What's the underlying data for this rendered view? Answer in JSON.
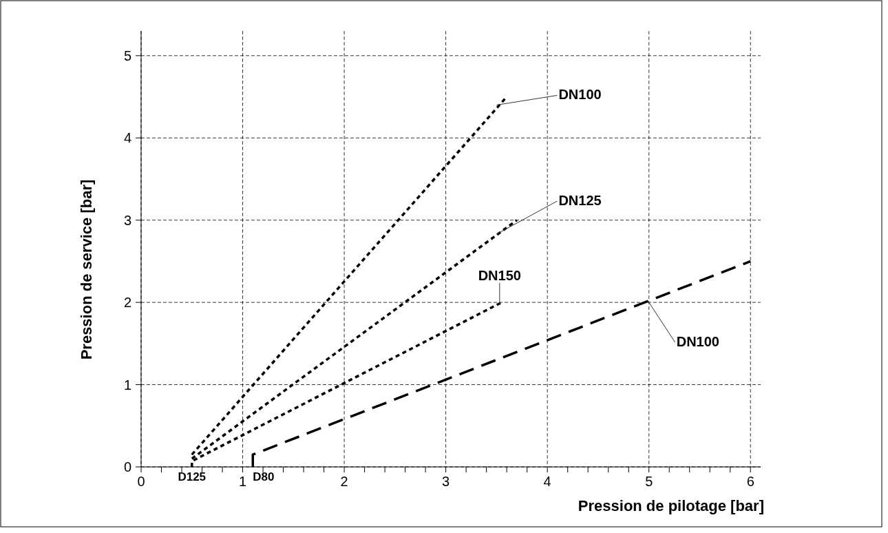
{
  "chart_data": {
    "type": "line",
    "xlabel": "Pression de pilotage [bar]",
    "ylabel": "Pression de service [bar]",
    "xlim": [
      0,
      6.1
    ],
    "ylim": [
      0,
      5.3
    ],
    "xticks": [
      0,
      {
        "value": 0.2,
        "label": null
      },
      {
        "value": 0.4,
        "label": null
      },
      {
        "value": 0.6,
        "label": null
      },
      {
        "value": 0.8,
        "label": null
      },
      1,
      {
        "value": 1.2,
        "label": null
      },
      {
        "value": 1.4,
        "label": null
      },
      {
        "value": 1.6,
        "label": null
      },
      {
        "value": 1.8,
        "label": null
      },
      2,
      {
        "value": 2.2,
        "label": null
      },
      {
        "value": 2.4,
        "label": null
      },
      {
        "value": 2.6,
        "label": null
      },
      {
        "value": 2.8,
        "label": null
      },
      3,
      {
        "value": 3.2,
        "label": null
      },
      {
        "value": 3.4,
        "label": null
      },
      {
        "value": 3.6,
        "label": null
      },
      {
        "value": 3.8,
        "label": null
      },
      4,
      {
        "value": 4.2,
        "label": null
      },
      {
        "value": 4.4,
        "label": null
      },
      {
        "value": 4.6,
        "label": null
      },
      {
        "value": 4.8,
        "label": null
      },
      5,
      {
        "value": 5.2,
        "label": null
      },
      {
        "value": 5.4,
        "label": null
      },
      {
        "value": 5.6,
        "label": null
      },
      {
        "value": 5.8,
        "label": null
      },
      6
    ],
    "yticks": [
      0,
      1,
      2,
      3,
      4,
      5
    ],
    "grid": true,
    "marker": "none",
    "series": [
      {
        "color": "#000000",
        "line_style": "dotted",
        "x": [
          0.5,
          3.6
        ],
        "values": [
          0.15,
          4.5
        ]
      },
      {
        "color": "#000000",
        "line_style": "dotted",
        "x": [
          0.5,
          3.7
        ],
        "values": [
          0.1,
          3.0
        ]
      },
      {
        "color": "#000000",
        "line_style": "dotted",
        "x": [
          0.5,
          0.5,
          3.55
        ],
        "values": [
          0,
          0.07,
          2.0
        ]
      },
      {
        "color": "#000000",
        "line_style": "dashed",
        "x": [
          1.1,
          1.1,
          6
        ],
        "values": [
          0,
          0.15,
          2.5
        ]
      }
    ],
    "annotations": [
      {
        "text": "DN100",
        "x": 3.5,
        "y": 4.4
      },
      {
        "text": "DN125",
        "x": 3.5,
        "y": 2.83
      },
      {
        "text": "DN150",
        "x": 3.53,
        "y": 1.97
      },
      {
        "text": "DN100",
        "x": 5.0,
        "y": 2.0
      },
      {
        "text": "D125",
        "x": 0.5,
        "y": 0
      },
      {
        "text": "D80",
        "x": 1.1,
        "y": 0
      }
    ]
  }
}
